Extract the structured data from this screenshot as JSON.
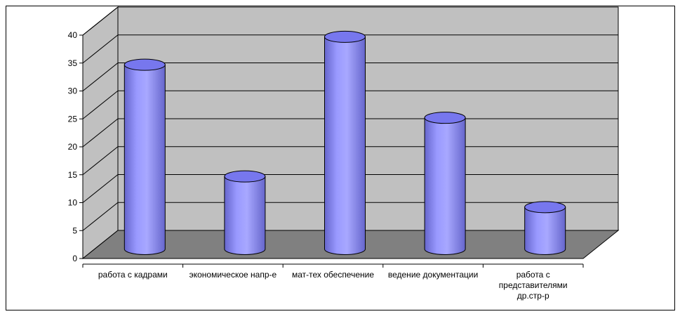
{
  "chart_data": {
    "type": "bar",
    "style": "3d-cylinder",
    "categories": [
      [
        "работа с кадрами"
      ],
      [
        "экономическое напр-е"
      ],
      [
        "мат-тех обеспечение"
      ],
      [
        "ведение документации"
      ],
      [
        "работа с",
        "представителями",
        "др.стр-р"
      ]
    ],
    "values": [
      33,
      13,
      38,
      23.5,
      7.5
    ],
    "ylim": [
      0,
      40
    ],
    "yticks": [
      0,
      5,
      10,
      15,
      20,
      25,
      30,
      35,
      40
    ],
    "grid": true,
    "legend": "none",
    "title": "",
    "xlabel": "",
    "ylabel": ""
  },
  "colors": {
    "back_wall": "#c0c0c0",
    "side_wall": "#c0c0c0",
    "floor": "#808080",
    "bar_fill": "#9999ff",
    "bar_dark": "#6666cc",
    "bar_top": "#7777ee",
    "gridline": "#000000"
  }
}
